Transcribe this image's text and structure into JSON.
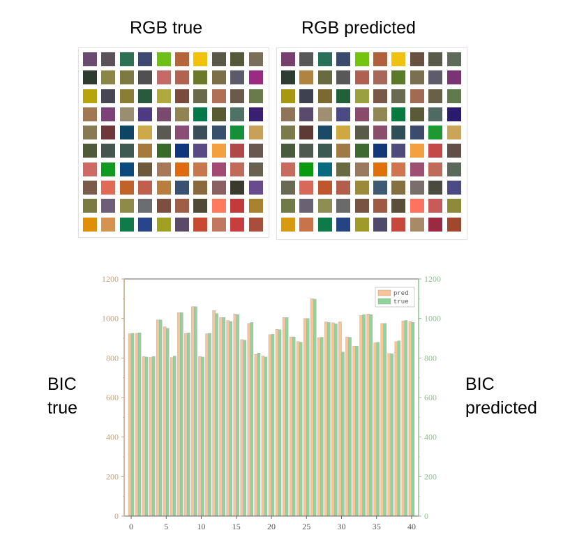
{
  "titles": {
    "rgb_true": "RGB true",
    "rgb_pred": "RGB predicted",
    "bic_true": [
      "BIC",
      "true"
    ],
    "bic_pred": [
      "BIC",
      "predicted"
    ]
  },
  "swatches_true": [
    "#6b4a72",
    "#5a5258",
    "#2e7052",
    "#3e4a72",
    "#6ec017",
    "#b5653a",
    "#f2c20a",
    "#5a5848",
    "#56583a",
    "#7a6e58",
    "#2f3b2f",
    "#8c8646",
    "#7c7a42",
    "#505050",
    "#c66a68",
    "#b06450",
    "#6a7a2a",
    "#7c6e46",
    "#5a5a6a",
    "#9a2a82",
    "#b5a40c",
    "#464654",
    "#8a7e36",
    "#2a5a3c",
    "#aeaa3e",
    "#7a4a3c",
    "#6a6a4a",
    "#b07058",
    "#6a5a4c",
    "#6a7a4a",
    "#a27852",
    "#7a4276",
    "#9a8e72",
    "#4e3a82",
    "#7a4a6e",
    "#928452",
    "#00784a",
    "#5a5a30",
    "#4e7266",
    "#3a1e72",
    "#887a52",
    "#6e383a",
    "#0e4466",
    "#ccaa4c",
    "#5a5a52",
    "#8a4e76",
    "#3a4e5a",
    "#38506c",
    "#159038",
    "#c8a058",
    "#4e5a38",
    "#465450",
    "#3e5a52",
    "#a67a3c",
    "#3a6a2a",
    "#10367e",
    "#5a4a84",
    "#f5a03e",
    "#b04a4a",
    "#6a5850",
    "#ce6a64",
    "#109a20",
    "#0a4a7c",
    "#6e5a3a",
    "#a8785a",
    "#e06a10",
    "#c8764c",
    "#a24a74",
    "#c06a5a",
    "#6a6050",
    "#7a5a48",
    "#e06a56",
    "#c0622a",
    "#c0604c",
    "#b87e3e",
    "#3a5070",
    "#8a6a3c",
    "#8a6062",
    "#3a3a2e",
    "#6a4a8e",
    "#7a7a42",
    "#6e5e78",
    "#8e8a4a",
    "#6a6e72",
    "#7e4e3e",
    "#a05e46",
    "#4e4a36",
    "#ff7a5e",
    "#c23a3a",
    "#a8822e",
    "#e09008",
    "#d4944e",
    "#107a4a",
    "#28448a",
    "#a0a022",
    "#5a4a68",
    "#c84a32",
    "#c07860",
    "#c83e3e",
    "#a84e3a"
  ],
  "swatches_pred": [
    "#783e6e",
    "#585858",
    "#287058",
    "#3a4a6e",
    "#72c40e",
    "#b0603a",
    "#f0c210",
    "#6a5040",
    "#5a5a4a",
    "#5e6a5a",
    "#2e3c32",
    "#b08440",
    "#6a6a40",
    "#585858",
    "#b06050",
    "#a86858",
    "#5a7a2a",
    "#7a7050",
    "#5c5c6a",
    "#7a3474",
    "#a69810",
    "#3e4250",
    "#7a6a32",
    "#22603a",
    "#9aa040",
    "#7a5848",
    "#6a6a50",
    "#a06a54",
    "#6a6048",
    "#607a4e",
    "#907458",
    "#5a4a6e",
    "#a08e70",
    "#4a4a84",
    "#8a4a6a",
    "#908852",
    "#087a40",
    "#5a5a38",
    "#4e6a62",
    "#2a1a6e",
    "#7a7a4a",
    "#5e3a34",
    "#1a4a66",
    "#d0a840",
    "#5a5a48",
    "#8a4e6c",
    "#2e4e58",
    "#3c4a6e",
    "#1a9a30",
    "#caa45a",
    "#4a5a3c",
    "#4e5a4e",
    "#3a5a52",
    "#a07a44",
    "#3e6a32",
    "#12387a",
    "#4e4a7a",
    "#f5a040",
    "#c44a4a",
    "#625048",
    "#c86a5e",
    "#0a9a10",
    "#086a80",
    "#6a6a40",
    "#9a7a5e",
    "#e0700a",
    "#d07450",
    "#9e4e70",
    "#c06a5a",
    "#5a6a5a",
    "#6a6a52",
    "#d8685a",
    "#c0562e",
    "#b25e4a",
    "#9a8a3a",
    "#3e5a72",
    "#857040",
    "#7a6e6a",
    "#4a4a3e",
    "#4a4a84",
    "#707a46",
    "#6a6272",
    "#8e8e52",
    "#6a6a6a",
    "#7a5244",
    "#9e5a44",
    "#5a4e38",
    "#ff7260",
    "#c85a5a",
    "#8e8a3a",
    "#d89a0e",
    "#c8744a",
    "#0e7a48",
    "#244484",
    "#a09a2a",
    "#504a6a",
    "#c8483e",
    "#a88a68",
    "#9a2a42",
    "#a0482e"
  ],
  "chart_data": {
    "type": "bar",
    "x": [
      0,
      1,
      2,
      3,
      4,
      5,
      6,
      7,
      8,
      9,
      10,
      11,
      12,
      13,
      14,
      15,
      16,
      17,
      18,
      19,
      20,
      21,
      22,
      23,
      24,
      25,
      26,
      27,
      28,
      29,
      30,
      31,
      32,
      33,
      34,
      35,
      36,
      37,
      38,
      39,
      40
    ],
    "series": [
      {
        "name": "pred",
        "color": "#f9c498",
        "values": [
          923,
          925,
          808,
          803,
          993,
          958,
          802,
          1030,
          925,
          1060,
          808,
          923,
          1040,
          1005,
          990,
          1023,
          893,
          975,
          818,
          810,
          918,
          945,
          1005,
          907,
          883,
          1000,
          1100,
          903,
          983,
          978,
          983,
          907,
          860,
          1015,
          1023,
          877,
          975,
          823,
          883,
          988,
          985
        ]
      },
      {
        "name": "true",
        "color": "#8fd49a",
        "values": [
          925,
          927,
          805,
          808,
          993,
          950,
          810,
          1030,
          927,
          1060,
          805,
          925,
          1025,
          1005,
          985,
          1020,
          890,
          980,
          825,
          805,
          920,
          943,
          1005,
          907,
          880,
          1000,
          1098,
          905,
          980,
          973,
          830,
          905,
          860,
          1020,
          1020,
          880,
          975,
          822,
          887,
          990,
          980
        ]
      }
    ],
    "ylim": [
      0,
      1200
    ],
    "xlim": [
      -1,
      41
    ],
    "yticks": [
      0,
      200,
      400,
      600,
      800,
      1000,
      1200
    ],
    "xticks": [
      0,
      5,
      10,
      15,
      20,
      25,
      30,
      35,
      40
    ],
    "legend_position": "top-right",
    "grid": false
  }
}
